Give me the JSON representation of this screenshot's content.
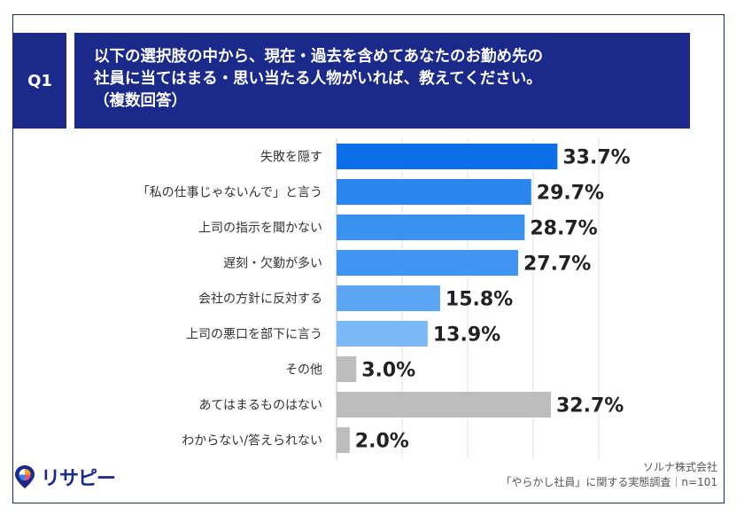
{
  "header": {
    "q_label": "Q1",
    "question_lines": [
      "以下の選択肢の中から、現在・過去を含めてあなたのお勤め先の",
      "社員に当てはまる・思い当たる人物がいれば、教えてください。",
      "（複数回答）"
    ]
  },
  "chart_data": {
    "type": "bar",
    "orientation": "horizontal",
    "categories": [
      "失敗を隠す",
      "「私の仕事じゃないんで」と言う",
      "上司の指示を聞かない",
      "遅刻・欠勤が多い",
      "会社の方針に反対する",
      "上司の悪口を部下に言う",
      "その他",
      "あてはまるものはない",
      "わからない/答えられない"
    ],
    "values": [
      33.7,
      29.7,
      28.7,
      27.7,
      15.8,
      13.9,
      3.0,
      32.7,
      2.0
    ],
    "value_labels": [
      "33.7%",
      "29.7%",
      "28.7%",
      "27.7%",
      "15.8%",
      "13.9%",
      "3.0%",
      "32.7%",
      "2.0%"
    ],
    "colors": [
      "#0a6fe8",
      "#2a86ee",
      "#3a92f0",
      "#3f95f1",
      "#5aa6f4",
      "#7ab8f7",
      "#bdbdbd",
      "#bdbdbd",
      "#bdbdbd"
    ],
    "xlim": [
      0,
      40
    ],
    "grid": true
  },
  "footer": {
    "brand": "リサピー",
    "source_lines": [
      "ソルナ株式会社",
      "「やらかし社員」に関する実態調査｜n=101"
    ]
  }
}
